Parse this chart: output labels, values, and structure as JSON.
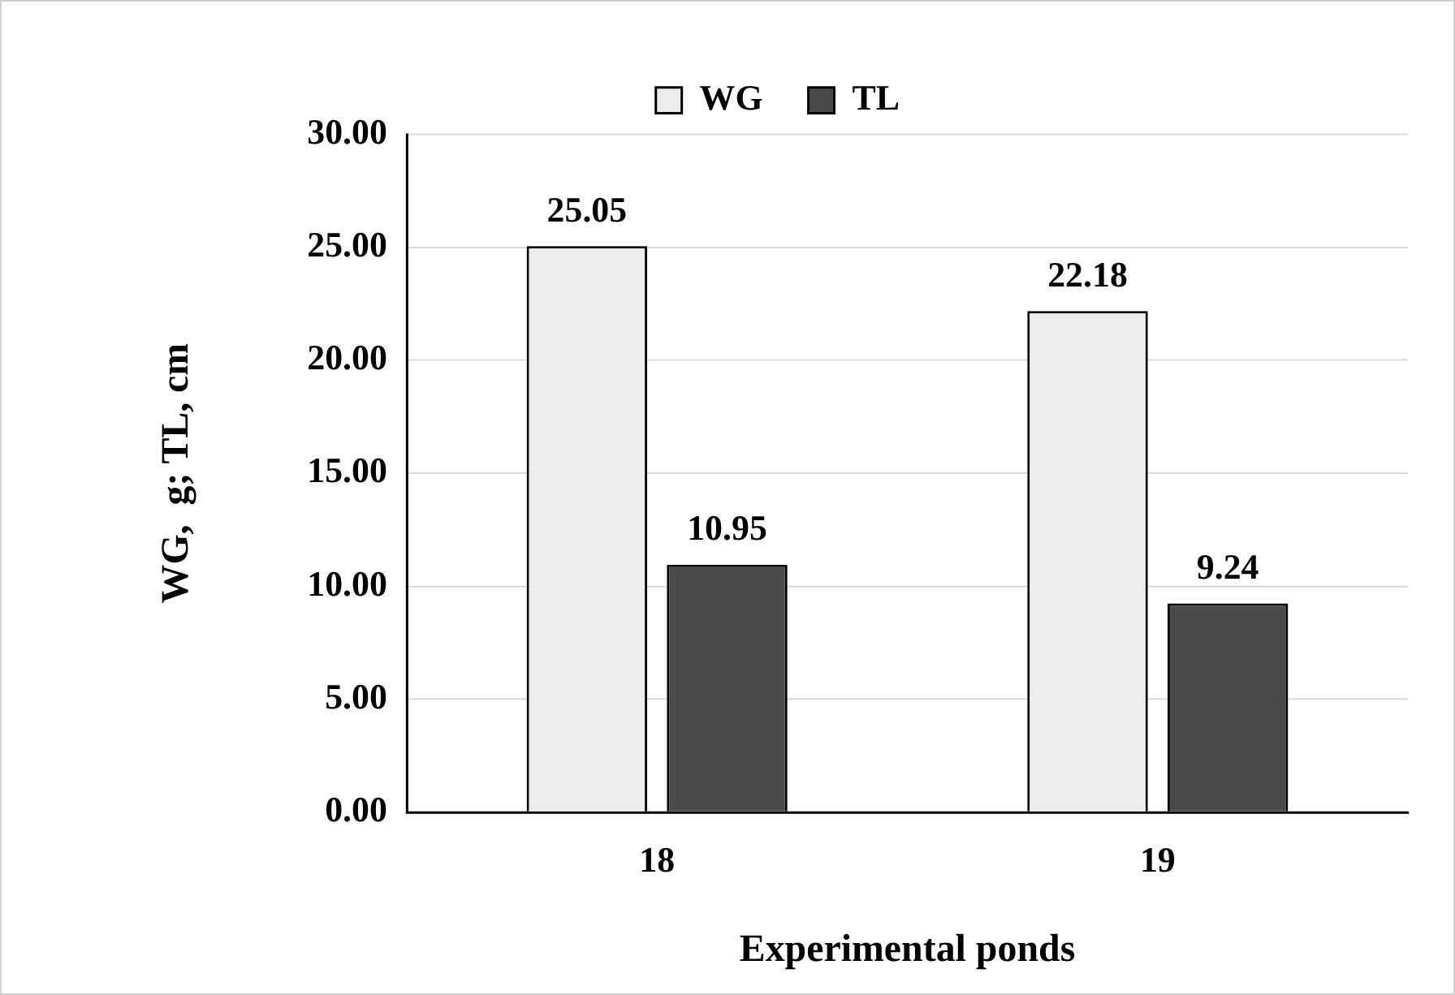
{
  "chart_data": {
    "type": "bar",
    "xlabel": "Experimental ponds",
    "ylabel": "WG,  g; TL, cm",
    "categories": [
      "18",
      "19"
    ],
    "series": [
      {
        "name": "WG",
        "color": "#ececec",
        "values": [
          25.05,
          22.18
        ]
      },
      {
        "name": "TL",
        "color": "#4a4a4a",
        "values": [
          10.95,
          9.24
        ]
      }
    ],
    "ylim": [
      0,
      30
    ],
    "yticks": [
      {
        "value": 0,
        "label": "0.00"
      },
      {
        "value": 5,
        "label": "5.00"
      },
      {
        "value": 10,
        "label": "10.00"
      },
      {
        "value": 15,
        "label": "15.00"
      },
      {
        "value": 20,
        "label": "20.00"
      },
      {
        "value": 25,
        "label": "25.00"
      },
      {
        "value": 30,
        "label": "30.00"
      }
    ],
    "grid": "y",
    "legend": "top",
    "data_labels": true
  }
}
